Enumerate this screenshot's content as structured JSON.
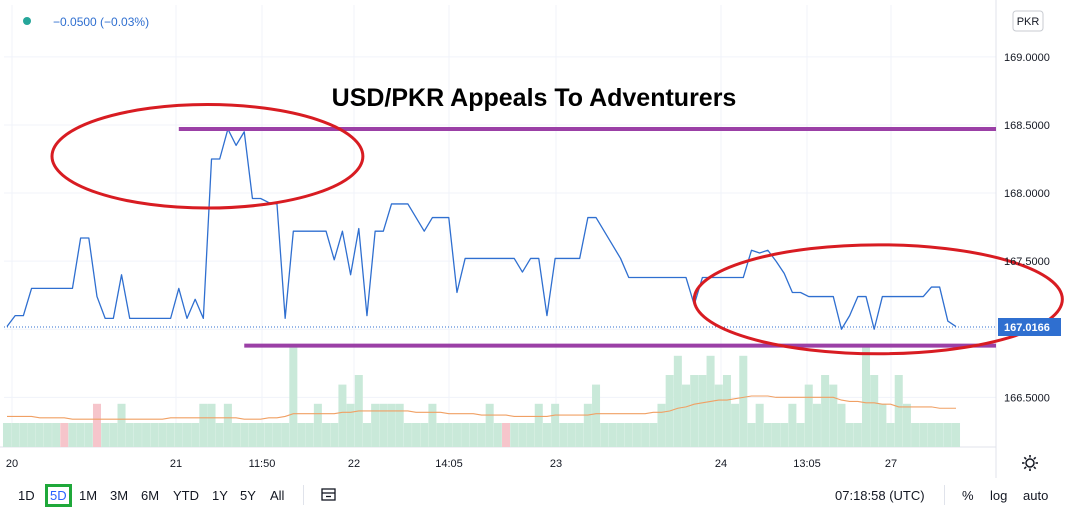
{
  "legend": {
    "change": "−0.0500 (−0.03%)"
  },
  "currency_badge": "PKR",
  "annotation_title": "USD/PKR Appeals To Adventurers",
  "price_label": "167.0166",
  "bottom_bar": {
    "ranges": [
      "1D",
      "5D",
      "1M",
      "3M",
      "6M",
      "YTD",
      "1Y",
      "5Y",
      "All"
    ],
    "active_range": "5D",
    "time": "07:18:58 (UTC)",
    "percent": "%",
    "log": "log",
    "auto": "auto"
  },
  "colors": {
    "line": "#2f6fd0",
    "volume_up": "#c9e9d9",
    "volume_down": "#f6c5cb",
    "ma": "#f0a064",
    "support_resistance": "#9b40a6",
    "ellipse": "#d81c22",
    "price_tag": "#2f6fd0"
  },
  "chart_data": {
    "type": "line",
    "ylim": [
      166.2,
      169.3
    ],
    "yticks": [
      166.5,
      167.0,
      167.5,
      168.0,
      168.5,
      169.0
    ],
    "ytick_labels": [
      "166.5000",
      "167.0000",
      "167.5000",
      "168.0000",
      "168.5000",
      "169.0000"
    ],
    "xtick_labels": [
      "20",
      "21",
      "11:50",
      "22",
      "14:05",
      "23",
      "24",
      "13:05",
      "27"
    ],
    "price_series": [
      167.02,
      167.1,
      167.1,
      167.3,
      167.3,
      167.3,
      167.3,
      167.3,
      167.3,
      167.67,
      167.67,
      167.24,
      167.08,
      167.08,
      167.4,
      167.08,
      167.08,
      167.08,
      167.08,
      167.08,
      167.08,
      167.3,
      167.08,
      167.22,
      167.08,
      168.25,
      168.25,
      168.47,
      168.35,
      168.45,
      167.96,
      167.96,
      167.93,
      167.92,
      167.08,
      167.72,
      167.72,
      167.72,
      167.72,
      167.72,
      167.51,
      167.72,
      167.4,
      167.74,
      167.1,
      167.72,
      167.72,
      167.92,
      167.92,
      167.92,
      167.82,
      167.72,
      167.82,
      167.82,
      167.82,
      167.27,
      167.52,
      167.52,
      167.52,
      167.52,
      167.52,
      167.52,
      167.52,
      167.42,
      167.52,
      167.52,
      167.1,
      167.52,
      167.52,
      167.52,
      167.52,
      167.82,
      167.82,
      167.72,
      167.62,
      167.52,
      167.38,
      167.38,
      167.38,
      167.38,
      167.38,
      167.38,
      167.38,
      167.38,
      167.18,
      167.38,
      167.38,
      167.38,
      167.38,
      167.38,
      167.38,
      167.58,
      167.56,
      167.58,
      167.5,
      167.41,
      167.27,
      167.27,
      167.24,
      167.24,
      167.24,
      167.24,
      167.0,
      167.1,
      167.24,
      167.24,
      167.0,
      167.24,
      167.24,
      167.24,
      167.24,
      167.24,
      167.24,
      167.31,
      167.31,
      167.06,
      167.02
    ],
    "last_value": 167.0166,
    "volume": [
      0.5,
      0.5,
      0.5,
      0.5,
      0.5,
      0.5,
      0.5,
      0.5,
      0.5,
      0.5,
      0.5,
      0.9,
      0.5,
      0.5,
      0.9,
      0.5,
      0.5,
      0.5,
      0.5,
      0.5,
      0.5,
      0.5,
      0.5,
      0.5,
      0.9,
      0.9,
      0.5,
      0.9,
      0.5,
      0.5,
      0.5,
      0.5,
      0.5,
      0.5,
      0.5,
      2.1,
      0.5,
      0.5,
      0.9,
      0.5,
      0.5,
      1.3,
      0.9,
      1.5,
      0.5,
      0.9,
      0.9,
      0.9,
      0.9,
      0.5,
      0.5,
      0.5,
      0.9,
      0.5,
      0.5,
      0.5,
      0.5,
      0.5,
      0.5,
      0.9,
      0.5,
      0.5,
      0.5,
      0.5,
      0.5,
      0.9,
      0.5,
      0.9,
      0.5,
      0.5,
      0.5,
      0.9,
      1.3,
      0.5,
      0.5,
      0.5,
      0.5,
      0.5,
      0.5,
      0.5,
      0.9,
      1.5,
      1.9,
      1.3,
      1.5,
      1.5,
      1.9,
      1.3,
      1.5,
      0.9,
      1.9,
      0.5,
      0.9,
      0.5,
      0.5,
      0.5,
      0.9,
      0.5,
      1.3,
      0.9,
      1.5,
      1.3,
      0.9,
      0.5,
      0.5,
      2.1,
      1.5,
      0.9,
      0.5,
      1.5,
      0.9,
      0.5,
      0.5,
      0.5,
      0.5,
      0.5,
      0.5
    ],
    "volume_down_indices": [
      7,
      11,
      61
    ],
    "moving_average": [
      166.36,
      166.36,
      166.36,
      166.36,
      166.35,
      166.35,
      166.35,
      166.35,
      166.34,
      166.34,
      166.34,
      166.34,
      166.34,
      166.34,
      166.34,
      166.34,
      166.34,
      166.34,
      166.34,
      166.34,
      166.35,
      166.35,
      166.35,
      166.35,
      166.35,
      166.35,
      166.35,
      166.35,
      166.35,
      166.34,
      166.34,
      166.34,
      166.35,
      166.35,
      166.36,
      166.38,
      166.38,
      166.38,
      166.38,
      166.38,
      166.38,
      166.39,
      166.39,
      166.4,
      166.4,
      166.4,
      166.4,
      166.4,
      166.4,
      166.4,
      166.39,
      166.39,
      166.39,
      166.39,
      166.38,
      166.38,
      166.38,
      166.38,
      166.37,
      166.37,
      166.37,
      166.37,
      166.36,
      166.36,
      166.36,
      166.36,
      166.36,
      166.37,
      166.37,
      166.37,
      166.37,
      166.37,
      166.38,
      166.38,
      166.38,
      166.38,
      166.38,
      166.38,
      166.38,
      166.39,
      166.39,
      166.4,
      166.42,
      166.43,
      166.45,
      166.46,
      166.47,
      166.48,
      166.48,
      166.49,
      166.5,
      166.51,
      166.51,
      166.51,
      166.5,
      166.5,
      166.5,
      166.5,
      166.5,
      166.5,
      166.5,
      166.5,
      166.48,
      166.47,
      166.47,
      166.46,
      166.46,
      166.45,
      166.45,
      166.43,
      166.43,
      166.43,
      166.43,
      166.43,
      166.42,
      166.42,
      166.42
    ],
    "annotations": {
      "resistance_level": 168.47,
      "support_level": 166.88,
      "resistance_from_bar": 21,
      "support_from_bar": 29,
      "ellipse_1": {
        "center_bar": 24.5,
        "center_value": 168.27,
        "bars_radius": 19,
        "value_radius": 0.38
      },
      "ellipse_2": {
        "center_bar": 106.5,
        "center_value": 167.22,
        "bars_radius": 22.5,
        "value_radius": 0.4
      }
    }
  }
}
